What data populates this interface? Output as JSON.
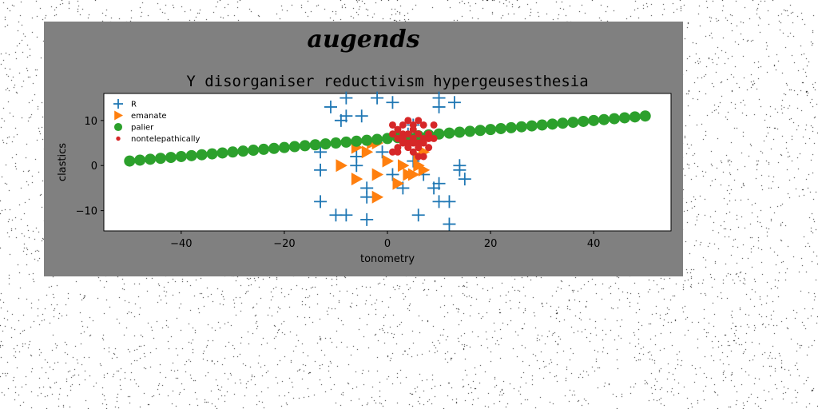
{
  "figure": {
    "suptitle": "augends",
    "background": "#808080",
    "page_background": "#ffffff"
  },
  "chart_data": {
    "type": "scatter",
    "title": "Y disorganiser reductivism hypergeusesthesia",
    "xlabel": "tonometry",
    "ylabel": "clastics",
    "xlim": [
      -55,
      55
    ],
    "ylim": [
      -14.5,
      16
    ],
    "xticks": [
      -40,
      -20,
      0,
      20,
      40
    ],
    "yticks": [
      -10,
      0,
      10
    ],
    "xtick_labels": [
      "−40",
      "−20",
      "0",
      "20",
      "40"
    ],
    "ytick_labels": [
      "−10",
      "0",
      "10"
    ],
    "grid": false,
    "legend_position": "top-left",
    "series": [
      {
        "name": "R",
        "marker": "plus",
        "color": "#1f77b4",
        "points": [
          [
            -11,
            13
          ],
          [
            -8,
            15
          ],
          [
            -9,
            10
          ],
          [
            -8,
            11
          ],
          [
            -5,
            11
          ],
          [
            -2,
            15
          ],
          [
            1,
            14
          ],
          [
            10,
            15
          ],
          [
            10,
            13
          ],
          [
            13,
            14
          ],
          [
            5,
            9
          ],
          [
            4,
            7
          ],
          [
            -13,
            3
          ],
          [
            -13,
            -1
          ],
          [
            -13,
            -8
          ],
          [
            -10,
            -11
          ],
          [
            -8,
            -11
          ],
          [
            -4,
            -12
          ],
          [
            -6,
            2
          ],
          [
            -6,
            0
          ],
          [
            -4,
            -5
          ],
          [
            -4,
            -7
          ],
          [
            3,
            -5
          ],
          [
            6,
            -11
          ],
          [
            10,
            -8
          ],
          [
            10,
            -4
          ],
          [
            12,
            -8
          ],
          [
            12,
            -13
          ],
          [
            14,
            0
          ],
          [
            14,
            -1
          ],
          [
            15,
            -3
          ],
          [
            5,
            1
          ],
          [
            7,
            -2
          ],
          [
            1,
            -2
          ],
          [
            -1,
            3
          ],
          [
            9,
            -5
          ]
        ]
      },
      {
        "name": "emanate",
        "marker": "triangle-right",
        "color": "#ff7f0e",
        "points": [
          [
            -6,
            4
          ],
          [
            -4,
            3
          ],
          [
            -2,
            5
          ],
          [
            -9,
            0
          ],
          [
            -6,
            -3
          ],
          [
            -2,
            -2
          ],
          [
            0,
            1
          ],
          [
            2,
            -4
          ],
          [
            3,
            0
          ],
          [
            4,
            -2
          ],
          [
            5,
            -2
          ],
          [
            6,
            0
          ],
          [
            7,
            3
          ],
          [
            7,
            -1
          ],
          [
            -2,
            -7
          ],
          [
            -3,
            5
          ],
          [
            6,
            2
          ]
        ]
      },
      {
        "name": "palier",
        "marker": "circle",
        "color": "#2ca02c",
        "line_start": [
          -50,
          1
        ],
        "line_end": [
          50,
          11
        ],
        "count": 51
      },
      {
        "name": "nontelepathically",
        "marker": "dot",
        "color": "#d62728",
        "points": [
          [
            1,
            9
          ],
          [
            2,
            8
          ],
          [
            3,
            9
          ],
          [
            4,
            10
          ],
          [
            5,
            8
          ],
          [
            6,
            10
          ],
          [
            7,
            9
          ],
          [
            9,
            9
          ],
          [
            1,
            7
          ],
          [
            2,
            6
          ],
          [
            3,
            7
          ],
          [
            4,
            5
          ],
          [
            5,
            6
          ],
          [
            6,
            7
          ],
          [
            7,
            6
          ],
          [
            8,
            7
          ],
          [
            9,
            6
          ],
          [
            2,
            4
          ],
          [
            3,
            5
          ],
          [
            4,
            4
          ],
          [
            5,
            5
          ],
          [
            6,
            4
          ],
          [
            7,
            5
          ],
          [
            8,
            4
          ],
          [
            5,
            3
          ],
          [
            6,
            2
          ],
          [
            7,
            2
          ],
          [
            1,
            3
          ],
          [
            2,
            3
          ],
          [
            3,
            6
          ],
          [
            6,
            5
          ],
          [
            4,
            7
          ],
          [
            8,
            6
          ],
          [
            5,
            9
          ]
        ]
      }
    ]
  }
}
